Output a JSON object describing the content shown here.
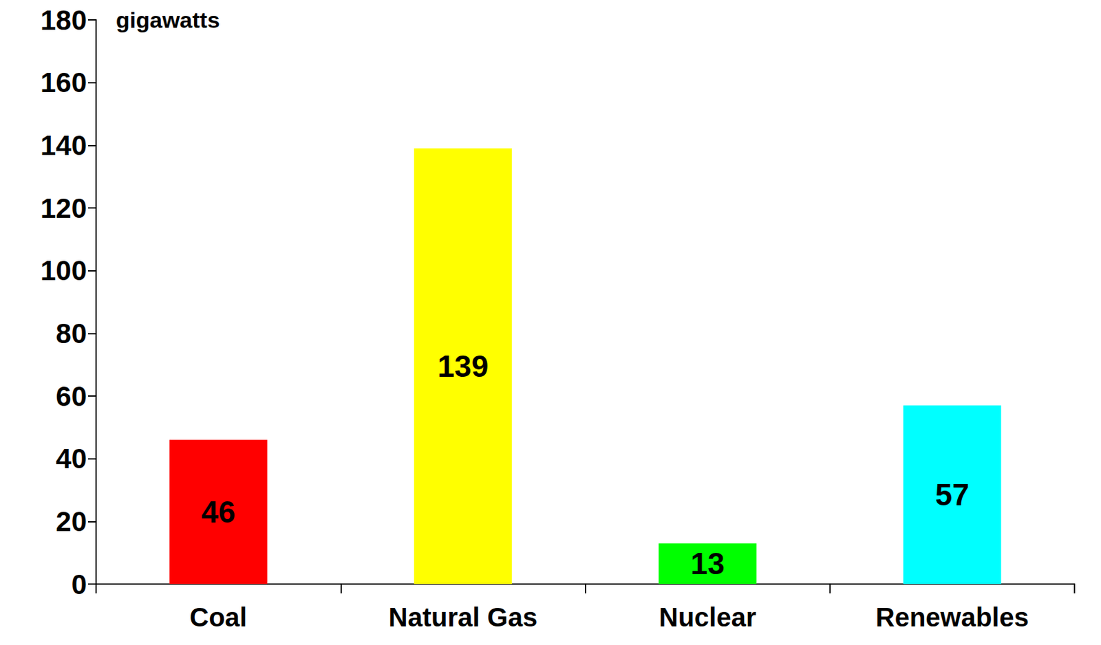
{
  "chart_data": {
    "type": "bar",
    "ylabel": "gigawatts",
    "categories": [
      "Coal",
      "Natural Gas",
      "Nuclear",
      "Renewables"
    ],
    "values": [
      46,
      139,
      13,
      57
    ],
    "colors": [
      "#ff0000",
      "#ffff00",
      "#00ff00",
      "#00ffff"
    ],
    "ylim": [
      0,
      180
    ],
    "yticks": [
      0,
      20,
      40,
      60,
      80,
      100,
      120,
      140,
      160,
      180
    ],
    "grid": false,
    "data_labels": true
  }
}
